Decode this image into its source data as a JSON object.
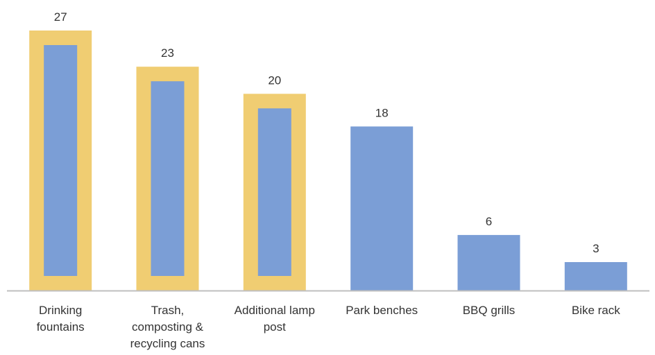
{
  "chart_data": {
    "type": "bar",
    "categories": [
      [
        "Drinking",
        "fountains"
      ],
      [
        "Trash,",
        "composting &",
        "recycling cans"
      ],
      [
        "Additional lamp",
        "post"
      ],
      [
        "Park benches"
      ],
      [
        "BBQ grills"
      ],
      [
        "Bike rack"
      ]
    ],
    "values": [
      27,
      23,
      20,
      18,
      6,
      3
    ],
    "highlighted": [
      true,
      true,
      true,
      false,
      false,
      false
    ],
    "data_labels": [
      "27",
      "23",
      "20",
      "18",
      "6",
      "3"
    ],
    "title": "",
    "xlabel": "",
    "ylabel": "",
    "ylim": [
      0,
      29
    ],
    "grid": false,
    "legend": "none",
    "colors": {
      "bar": "#7b9ed6",
      "highlight": "#f0cd72",
      "axis": "#bfbfbf",
      "text": "#333333"
    }
  }
}
